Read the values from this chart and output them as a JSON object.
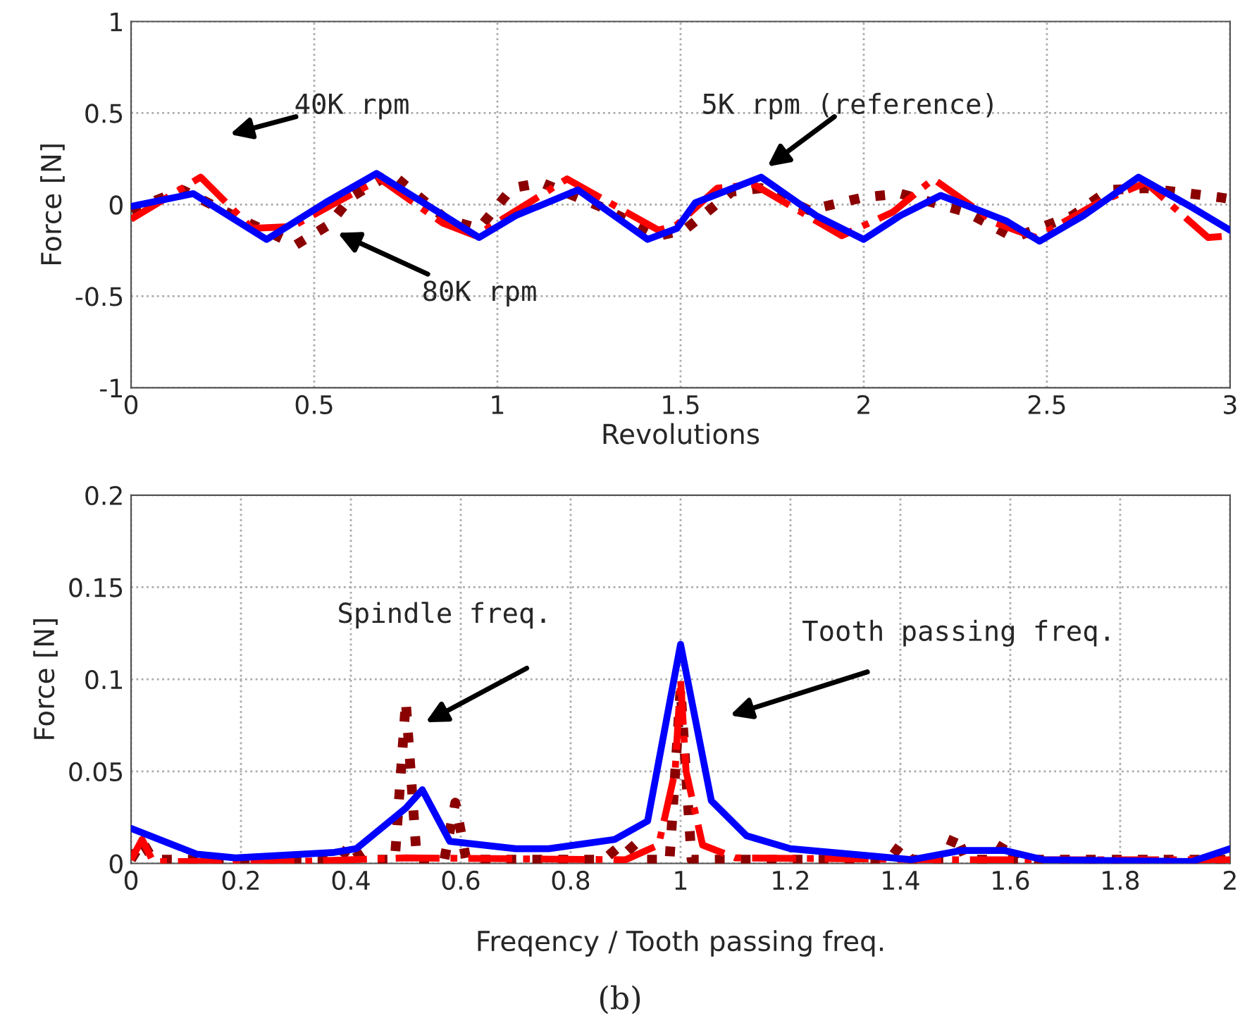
{
  "chart_data": [
    {
      "type": "line",
      "xlabel": "Revolutions",
      "ylabel": "Force [N]",
      "xlim": [
        0,
        3
      ],
      "ylim": [
        -1,
        1
      ],
      "xticks": [
        0,
        0.5,
        1,
        1.5,
        2,
        2.5,
        3
      ],
      "yticks": [
        -1,
        -0.5,
        0,
        0.5,
        1
      ],
      "grid": true,
      "legend": false,
      "annotations": [
        "40K rpm",
        "5K rpm (reference)",
        "80K rpm"
      ],
      "series": [
        {
          "color": "#0000ff",
          "line_style": "solid",
          "x": [
            0,
            0.17,
            0.37,
            0.53,
            0.67,
            0.95,
            1.05,
            1.22,
            1.41,
            1.49,
            1.54,
            1.72,
            1.87,
            2.0,
            2.1,
            2.21,
            2.39,
            2.48,
            2.6,
            2.75,
            2.9,
            3.0
          ],
          "values": [
            -0.01,
            0.06,
            -0.19,
            0.01,
            0.17,
            -0.18,
            -0.06,
            0.08,
            -0.19,
            -0.13,
            0.01,
            0.15,
            -0.06,
            -0.19,
            -0.06,
            0.05,
            -0.09,
            -0.2,
            -0.06,
            0.15,
            -0.02,
            -0.14
          ]
        },
        {
          "color": "#ff0000",
          "line_style": "dashdot",
          "x": [
            0,
            0.19,
            0.33,
            0.44,
            0.54,
            0.68,
            0.85,
            0.94,
            1.07,
            1.19,
            1.44,
            1.49,
            1.6,
            1.7,
            1.94,
            2.08,
            2.19,
            2.36,
            2.47,
            2.64,
            2.77,
            2.94,
            3.0
          ],
          "values": [
            -0.08,
            0.15,
            -0.13,
            -0.12,
            -0.01,
            0.14,
            -0.1,
            -0.17,
            -0.01,
            0.14,
            -0.14,
            -0.11,
            0.09,
            0.11,
            -0.17,
            -0.04,
            0.14,
            -0.1,
            -0.18,
            0.01,
            0.12,
            -0.18,
            -0.17
          ]
        },
        {
          "color": "#8b0000",
          "line_style": "dotted",
          "x": [
            0,
            0.14,
            0.31,
            0.45,
            0.54,
            0.6,
            0.71,
            0.86,
            0.95,
            1.04,
            1.12,
            1.28,
            1.44,
            1.51,
            1.64,
            1.72,
            1.85,
            2.0,
            2.1,
            2.28,
            2.41,
            2.57,
            2.67,
            2.77,
            2.97,
            3.0
          ],
          "values": [
            -0.03,
            0.08,
            -0.09,
            -0.22,
            -0.11,
            0.04,
            0.17,
            -0.08,
            -0.13,
            0.09,
            0.12,
            -0.01,
            -0.17,
            -0.14,
            0.07,
            0.09,
            -0.03,
            0.04,
            0.06,
            -0.04,
            -0.18,
            -0.06,
            0.08,
            0.09,
            0.04,
            0.03
          ]
        }
      ]
    },
    {
      "type": "line",
      "xlabel": "Freqency / Tooth passing freq.",
      "ylabel": "Force [N]",
      "xlim": [
        0,
        2
      ],
      "ylim": [
        0,
        0.2
      ],
      "xticks": [
        0,
        0.2,
        0.4,
        0.6,
        0.8,
        1,
        1.2,
        1.4,
        1.6,
        1.8,
        2
      ],
      "yticks": [
        0,
        0.05,
        0.1,
        0.15,
        0.2
      ],
      "grid": true,
      "legend": false,
      "annotations": [
        "Spindle freq.",
        "Tooth passing freq.",
        "(b)"
      ],
      "series": [
        {
          "color": "#0000ff",
          "line_style": "solid",
          "x": [
            0,
            0.12,
            0.19,
            0.37,
            0.41,
            0.5,
            0.53,
            0.58,
            0.7,
            0.76,
            0.88,
            0.94,
            1.0,
            1.056,
            1.12,
            1.2,
            1.35,
            1.42,
            1.51,
            1.59,
            1.66,
            1.93,
            2.0
          ],
          "values": [
            0.019,
            0.005,
            0.003,
            0.006,
            0.008,
            0.03,
            0.04,
            0.012,
            0.008,
            0.008,
            0.013,
            0.023,
            0.119,
            0.034,
            0.015,
            0.008,
            0.004,
            0.002,
            0.007,
            0.007,
            0.002,
            0.001,
            0.008
          ]
        },
        {
          "color": "#ff0000",
          "line_style": "dashdot",
          "x": [
            0,
            0.02,
            0.04,
            0.3,
            0.5,
            0.9,
            0.96,
            0.99,
            1.0,
            1.01,
            1.04,
            1.1,
            1.5,
            2.0
          ],
          "values": [
            0.002,
            0.013,
            0.001,
            0.001,
            0.003,
            0.002,
            0.01,
            0.05,
            0.1,
            0.05,
            0.01,
            0.003,
            0.002,
            0.002
          ]
        },
        {
          "color": "#8b0000",
          "line_style": "dotted",
          "x": [
            0,
            0.02,
            0.04,
            0.38,
            0.4,
            0.42,
            0.48,
            0.5,
            0.52,
            0.57,
            0.59,
            0.61,
            0.86,
            0.9,
            0.93,
            0.98,
            1.0,
            1.02,
            1.06,
            1.38,
            1.4,
            1.42,
            1.48,
            1.5,
            1.52,
            1.57,
            1.59,
            1.61,
            2.0
          ],
          "values": [
            0.002,
            0.012,
            0.002,
            0.002,
            0.011,
            0.002,
            0.002,
            0.088,
            0.002,
            0.002,
            0.033,
            0.002,
            0.002,
            0.012,
            0.002,
            0.002,
            0.095,
            0.002,
            0.002,
            0.002,
            0.01,
            0.002,
            0.002,
            0.016,
            0.002,
            0.002,
            0.012,
            0.002,
            0.002
          ]
        }
      ]
    }
  ]
}
